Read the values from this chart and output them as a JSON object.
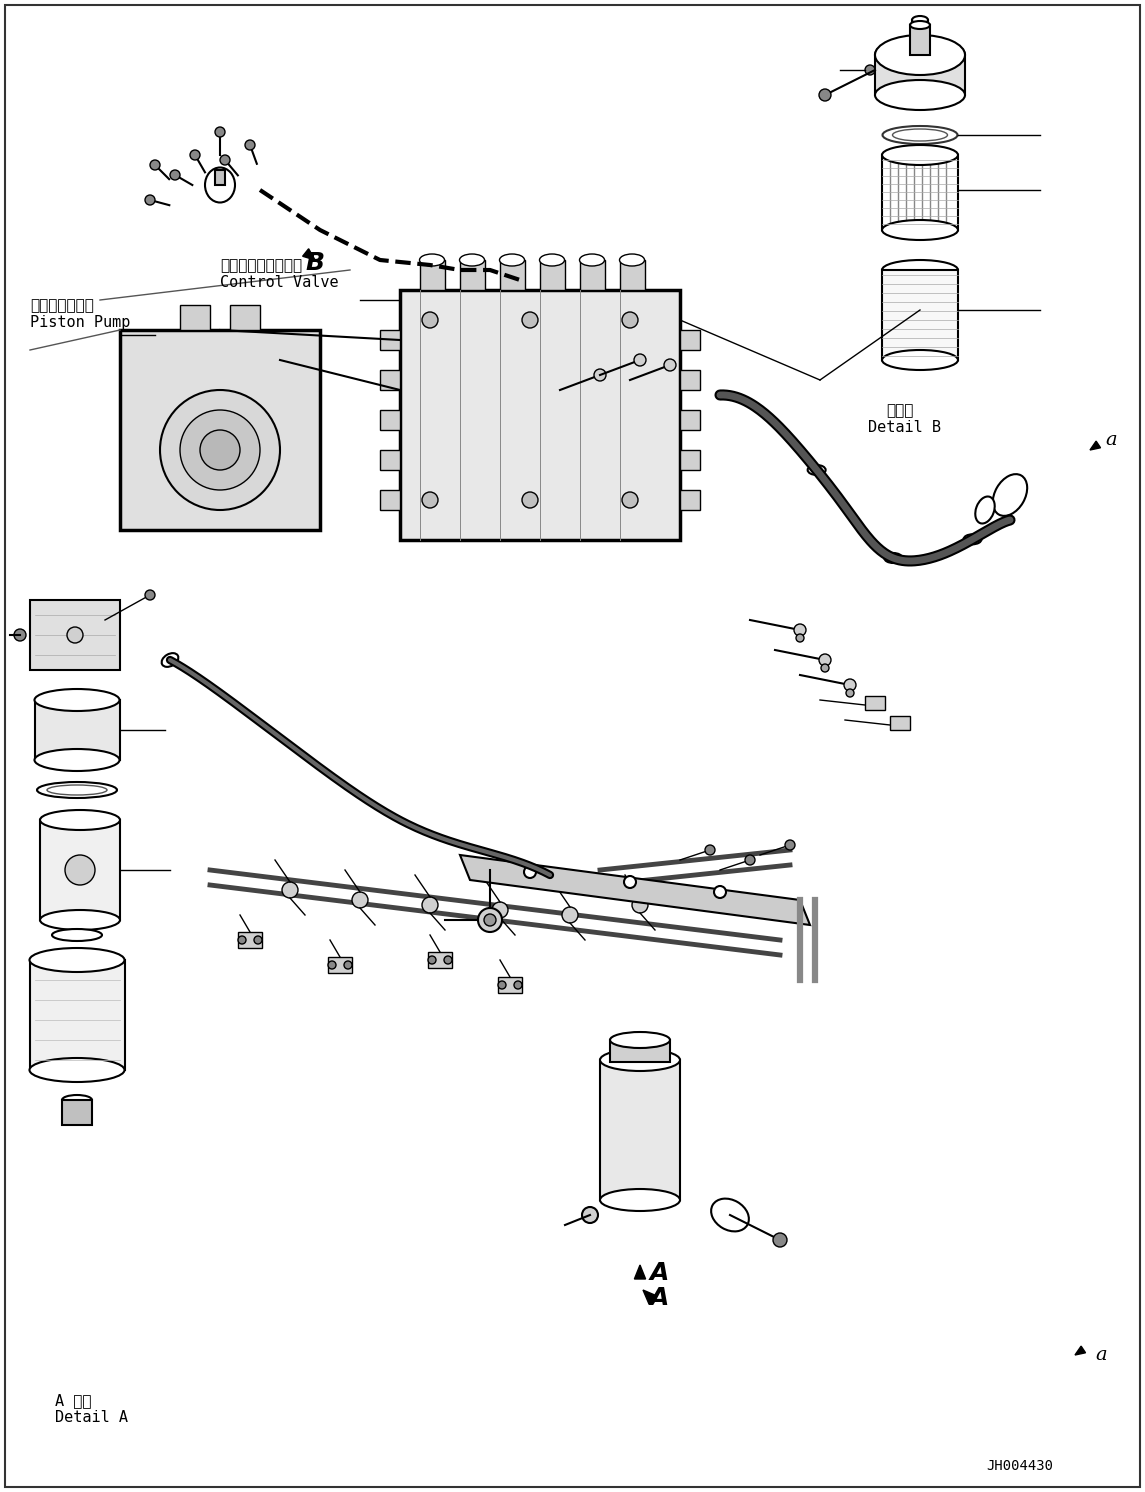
{
  "bg_color": "#ffffff",
  "line_color": "#000000",
  "fig_width": 11.45,
  "fig_height": 14.92,
  "dpi": 100,
  "labels": {
    "control_valve_jp": "コントロールバルブ",
    "control_valve_en": "Control Valve",
    "piston_pump_jp": "ピストンポンプ",
    "piston_pump_en": "Piston Pump",
    "detail_a_jp": "A 詳細",
    "detail_a_en": "Detail A",
    "detail_b_jp": "日詳細",
    "detail_b_en": "Detail B",
    "label_B": "B",
    "label_A": "A",
    "label_a1": "a",
    "label_a2": "a",
    "diagram_code": "JH004430"
  }
}
